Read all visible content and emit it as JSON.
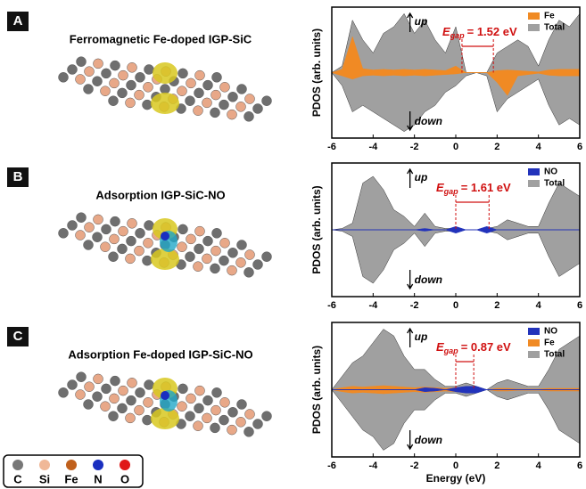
{
  "panels": [
    {
      "letter": "A",
      "title": "Ferromagnetic Fe-doped IGP-SiC",
      "chart_data": {
        "type": "pdos",
        "y_label": "PDOS (arb. units)",
        "up_label": "up",
        "down_label": "down",
        "xlim": [
          -6,
          6
        ],
        "ylim": [
          -1,
          1
        ],
        "xticks": [
          -6,
          -4,
          -2,
          0,
          2,
          4,
          6
        ],
        "legend": "top-right",
        "x": [
          -6,
          -5.5,
          -5,
          -4.5,
          -4,
          -3.5,
          -3,
          -2.5,
          -2,
          -1.5,
          -1,
          -0.5,
          0,
          0.5,
          1,
          1.5,
          2,
          2.5,
          3,
          3.5,
          4,
          4.5,
          5,
          5.5,
          6
        ],
        "series": [
          {
            "name": "Fe",
            "color": "#f08a24",
            "up": [
              0,
              0.05,
              0.55,
              0.06,
              0.04,
              0.05,
              0.04,
              0.05,
              0.04,
              0.05,
              0.04,
              0.03,
              0.1,
              0,
              0,
              0,
              0.03,
              0.04,
              0.03,
              0.02,
              0.01,
              0.04,
              0.05,
              0.05,
              0.05
            ],
            "down": [
              0,
              -0.05,
              -0.1,
              -0.05,
              -0.04,
              -0.05,
              -0.04,
              -0.05,
              -0.04,
              -0.05,
              -0.04,
              -0.03,
              -0.02,
              0,
              0,
              0,
              -0.15,
              -0.35,
              -0.05,
              -0.03,
              -0.01,
              -0.04,
              -0.05,
              -0.05,
              -0.05
            ]
          },
          {
            "name": "Total",
            "color": "#a0a0a0",
            "up": [
              0,
              0.1,
              0.8,
              0.5,
              0.3,
              0.6,
              0.7,
              0.9,
              0.6,
              0.8,
              0.5,
              0.3,
              0.7,
              0,
              0,
              0,
              0.3,
              0.4,
              0.5,
              0.4,
              0.1,
              0.5,
              0.8,
              0.7,
              0.9
            ],
            "down": [
              0,
              -0.2,
              -0.6,
              -0.5,
              -0.6,
              -0.7,
              -0.8,
              -0.9,
              -0.8,
              -0.6,
              -0.5,
              -0.3,
              -0.2,
              -0.05,
              0,
              -0.05,
              -0.6,
              -0.4,
              -0.3,
              -0.2,
              -0.1,
              -0.5,
              -0.8,
              -0.7,
              -0.8
            ]
          }
        ],
        "egap": {
          "symbol": "E",
          "sub": "gap",
          "text": "= 1.52 eV",
          "from": 0.3,
          "to": 1.82
        }
      }
    },
    {
      "letter": "B",
      "title": "Adsorption IGP-SiC-NO",
      "chart_data": {
        "type": "pdos",
        "y_label": "PDOS (arb. units)",
        "up_label": "up",
        "down_label": "down",
        "xlim": [
          -6,
          6
        ],
        "ylim": [
          -1,
          1
        ],
        "xticks": [
          -6,
          -4,
          -2,
          0,
          2,
          4,
          6
        ],
        "legend": "top-right",
        "x": [
          -6,
          -5.5,
          -5,
          -4.5,
          -4,
          -3.5,
          -3,
          -2.5,
          -2,
          -1.5,
          -1,
          -0.5,
          0,
          0.5,
          1,
          1.5,
          2,
          2.5,
          3,
          3.5,
          4,
          4.5,
          5,
          5.5,
          6
        ],
        "series": [
          {
            "name": "NO",
            "color": "#2233bb",
            "up": [
              0,
              0,
              0,
              0,
              0,
              0,
              0,
              0,
              0,
              0.02,
              0,
              0,
              0.05,
              0,
              0,
              0.05,
              0,
              0,
              0,
              0,
              0,
              0,
              0,
              0,
              0
            ],
            "down": [
              0,
              0,
              0,
              0,
              0,
              0,
              0,
              0,
              0,
              -0.02,
              0,
              0,
              -0.05,
              0,
              0,
              -0.05,
              0,
              0,
              0,
              0,
              0,
              0,
              0,
              0,
              0
            ]
          },
          {
            "name": "Total",
            "color": "#a0a0a0",
            "up": [
              0,
              0.02,
              0.1,
              0.7,
              0.8,
              0.6,
              0.3,
              0.2,
              0.05,
              0.25,
              0.05,
              0.02,
              0.02,
              0,
              0,
              0.02,
              0.05,
              0.15,
              0.1,
              0.05,
              0.05,
              0.4,
              0.7,
              0.6,
              0.5
            ],
            "down": [
              0,
              -0.02,
              -0.1,
              -0.7,
              -0.8,
              -0.6,
              -0.3,
              -0.2,
              -0.05,
              -0.25,
              -0.05,
              -0.02,
              -0.02,
              0,
              0,
              -0.02,
              -0.05,
              -0.15,
              -0.1,
              -0.05,
              -0.05,
              -0.4,
              -0.7,
              -0.6,
              -0.5
            ]
          }
        ],
        "egap": {
          "symbol": "E",
          "sub": "gap",
          "text": "= 1.61 eV",
          "from": 0,
          "to": 1.61
        }
      }
    },
    {
      "letter": "C",
      "title": "Adsorption Fe-doped IGP-SiC-NO",
      "chart_data": {
        "type": "pdos",
        "y_label": "PDOS (arb. units)",
        "x_label": "Energy (eV)",
        "up_label": "up",
        "down_label": "down",
        "xlim": [
          -6,
          6
        ],
        "ylim": [
          -1,
          1
        ],
        "xticks": [
          -6,
          -4,
          -2,
          0,
          2,
          4,
          6
        ],
        "legend": "top-right",
        "x": [
          -6,
          -5.5,
          -5,
          -4.5,
          -4,
          -3.5,
          -3,
          -2.5,
          -2,
          -1.5,
          -1,
          -0.5,
          0,
          0.5,
          1,
          1.5,
          2,
          2.5,
          3,
          3.5,
          4,
          4.5,
          5,
          5.5,
          6
        ],
        "series": [
          {
            "name": "NO",
            "color": "#2233bb",
            "up": [
              0,
              0,
              0,
              0,
              0,
              0,
              0,
              0,
              0,
              0.03,
              0.02,
              0,
              0.03,
              0.05,
              0.05,
              0,
              0,
              0,
              0,
              0,
              0,
              0,
              0,
              0,
              0
            ],
            "down": [
              0,
              0,
              0,
              0,
              0,
              0,
              0,
              0,
              0,
              -0.03,
              -0.02,
              0,
              -0.03,
              -0.05,
              -0.05,
              0,
              0,
              0,
              0,
              0,
              0,
              0,
              0,
              0,
              0
            ]
          },
          {
            "name": "Fe",
            "color": "#f08a24",
            "up": [
              0,
              0.03,
              0.05,
              0.04,
              0.05,
              0.06,
              0.05,
              0.04,
              0.03,
              0.04,
              0.03,
              0.02,
              0.03,
              0.02,
              0,
              0,
              0.02,
              0.02,
              0.01,
              0.01,
              0.01,
              0.02,
              0.02,
              0.02,
              0.02
            ],
            "down": [
              0,
              -0.03,
              -0.05,
              -0.04,
              -0.05,
              -0.06,
              -0.05,
              -0.04,
              -0.03,
              -0.04,
              -0.03,
              -0.02,
              -0.03,
              -0.02,
              0,
              0,
              -0.02,
              -0.02,
              -0.01,
              -0.01,
              -0.01,
              -0.02,
              -0.02,
              -0.02,
              -0.02
            ]
          },
          {
            "name": "Total",
            "color": "#a0a0a0",
            "up": [
              0,
              0.2,
              0.4,
              0.5,
              0.7,
              0.9,
              0.8,
              0.5,
              0.3,
              0.3,
              0.15,
              0.05,
              0.05,
              0.1,
              0.05,
              0,
              0.1,
              0.15,
              0.1,
              0.05,
              0.05,
              0.3,
              0.6,
              0.7,
              0.8
            ],
            "down": [
              0,
              -0.2,
              -0.4,
              -0.6,
              -0.7,
              -0.9,
              -0.8,
              -0.5,
              -0.3,
              -0.3,
              -0.15,
              -0.05,
              -0.05,
              -0.1,
              -0.05,
              0,
              -0.1,
              -0.15,
              -0.1,
              -0.05,
              -0.05,
              -0.3,
              -0.6,
              -0.7,
              -0.8
            ]
          }
        ],
        "egap": {
          "symbol": "E",
          "sub": "gap",
          "text": "= 0.87 eV",
          "from": 0,
          "to": 0.87
        }
      }
    }
  ],
  "atom_legend": [
    {
      "symbol": "C",
      "color": "#777777"
    },
    {
      "symbol": "Si",
      "color": "#f0b898"
    },
    {
      "symbol": "Fe",
      "color": "#c0601c"
    },
    {
      "symbol": "N",
      "color": "#1a2fc0"
    },
    {
      "symbol": "O",
      "color": "#e01818"
    }
  ]
}
